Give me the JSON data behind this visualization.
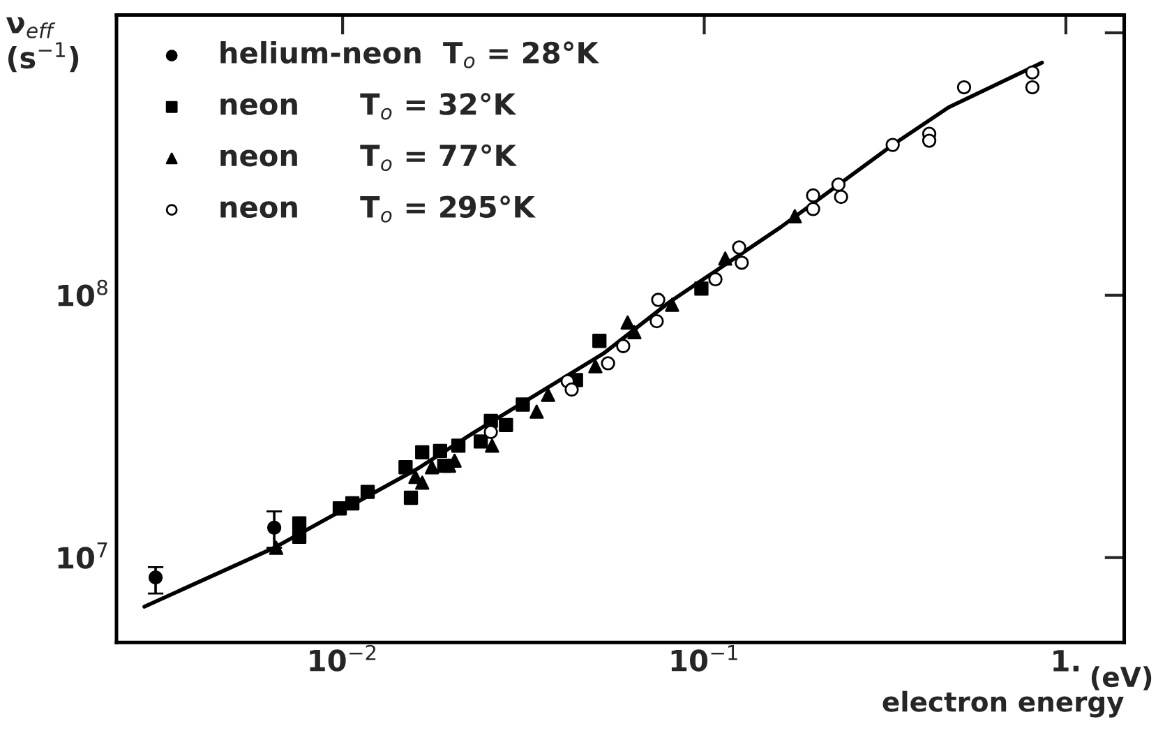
{
  "chart_data": {
    "type": "scatter",
    "xlabel": "electron energy",
    "ylabel": "ν$_{eff}$\n(s$^{−1}$)",
    "annotations": [
      "(eV)"
    ],
    "log": "xy",
    "xlim": [
      0.00237,
      1.45
    ],
    "ylim": [
      4750000.0,
      1170000000.0
    ],
    "xticks": [
      {
        "value": 0.01,
        "label": "10$^{−2}$"
      },
      {
        "value": 0.1,
        "label": "10$^{−1}$"
      },
      {
        "value": 1,
        "label": "1."
      }
    ],
    "yticks": [
      {
        "value": 10000000.0,
        "label": "10$^{7}$"
      },
      {
        "value": 100000000.0,
        "label": "10$^{8}$"
      },
      {
        "value": 1000000000.0,
        "label": null
      }
    ],
    "grid": false,
    "legend": "top left",
    "series": [
      {
        "name": "helium-neon  T$_{o}$ = 28°K",
        "color": "#000000",
        "marker": "circle",
        "x": [
          0.00304,
          0.00647
        ],
        "values": [
          8400000.0,
          13000000.0
        ],
        "errors": [
          [
            7300000.0,
            9200000.0
          ],
          [
            10900000.0,
            15000000.0
          ]
        ]
      },
      {
        "name": "neon      T$_{o}$ = 32°K",
        "color": "#000000",
        "marker": "square",
        "x": [
          0.00759,
          0.00759,
          0.00982,
          0.01064,
          0.01173,
          0.01493,
          0.0166,
          0.01545,
          0.0186,
          0.0209,
          0.0191,
          0.0257,
          0.0241,
          0.0283,
          0.0315,
          0.0442,
          0.0513,
          0.0982
        ],
        "values": [
          13500000.0,
          12000000.0,
          15400000.0,
          16100000.0,
          17800000.0,
          22100000.0,
          25200000.0,
          16900000.0,
          25500000.0,
          26700000.0,
          22400000.0,
          33200000.0,
          27700000.0,
          32000000.0,
          38300000.0,
          47500000.0,
          67000000.0,
          106000000.0
        ]
      },
      {
        "name": "neon      T$_{o}$ = 77°K",
        "color": "#000000",
        "marker": "triangle",
        "x": [
          0.00655,
          0.0166,
          0.01766,
          0.0204,
          0.0159,
          0.0197,
          0.0259,
          0.0344,
          0.037,
          0.05,
          0.0614,
          0.0641,
          0.0815,
          0.1143,
          0.178
        ],
        "values": [
          10900000.0,
          19300000.0,
          22100000.0,
          23400000.0,
          20300000.0,
          22400000.0,
          26700000.0,
          36000000.0,
          41700000.0,
          53600000.0,
          78700000.0,
          72300000.0,
          92000000.0,
          138000000.0,
          200000000.0
        ]
      },
      {
        "name": "neon      T$_{o}$ = 295°K",
        "color": "#000000",
        "marker": "circle",
        "x": [
          0.0257,
          0.0419,
          0.043,
          0.0597,
          0.0542,
          0.0746,
          0.0739,
          0.1074,
          0.1249,
          0.127,
          0.2,
          0.2,
          0.235,
          0.239,
          0.332,
          0.419,
          0.419,
          0.523,
          0.808,
          0.808
        ],
        "values": [
          30100000.0,
          47000000.0,
          43700000.0,
          64000000.0,
          55000000.0,
          96000000.0,
          79600000.0,
          115000000.0,
          152000000.0,
          133000000.0,
          240000000.0,
          213000000.0,
          264000000.0,
          237000000.0,
          374000000.0,
          412000000.0,
          388000000.0,
          620000000.0,
          706000000.0,
          620000000.0
        ]
      },
      {
        "type": "line",
        "color": "#000000",
        "marker": "none",
        "line_style": "solid",
        "x": [
          0.00283,
          0.00647,
          0.0161,
          0.0231,
          0.0527,
          0.08,
          0.163,
          0.332,
          0.474,
          0.859
        ],
        "values": [
          6500000.0,
          10900000.0,
          21800000.0,
          30000000.0,
          60000000.0,
          94000000.0,
          182000000.0,
          374000000.0,
          520000000.0,
          770000000.0
        ]
      }
    ]
  }
}
